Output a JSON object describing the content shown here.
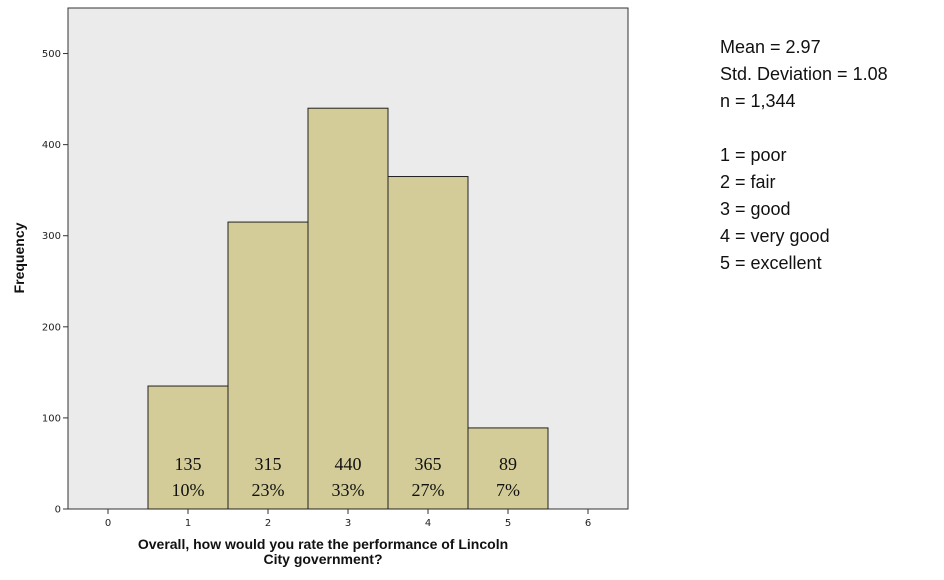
{
  "chart_data": {
    "type": "bar",
    "title": "",
    "xlabel_lines": [
      "Overall, how would you rate the performance of Lincoln",
      "City government?"
    ],
    "ylabel": "Frequency",
    "categories": [
      1,
      2,
      3,
      4,
      5
    ],
    "values": [
      135,
      315,
      440,
      365,
      89
    ],
    "bar_labels": [
      {
        "count": "135",
        "percent": "10%"
      },
      {
        "count": "315",
        "percent": "23%"
      },
      {
        "count": "440",
        "percent": "33%"
      },
      {
        "count": "365",
        "percent": "27%"
      },
      {
        "count": "89",
        "percent": "7%"
      }
    ],
    "xlim": [
      -0.5,
      6.5
    ],
    "ylim": [
      0,
      550
    ],
    "xticks": [
      0,
      1,
      2,
      3,
      4,
      5,
      6
    ],
    "yticks": [
      0,
      100,
      200,
      300,
      400,
      500
    ],
    "grid": false,
    "colors": {
      "bar_fill": "#d4cc98",
      "bar_stroke": "#222222",
      "plot_bg": "#ebebeb"
    }
  },
  "stats": {
    "mean": "Mean = 2.97",
    "std": "Std. Deviation = 1.08",
    "n": "n = 1,344"
  },
  "legend": [
    "1 = poor",
    "2 = fair",
    "3 = good",
    "4 = very good",
    "5 = excellent"
  ]
}
